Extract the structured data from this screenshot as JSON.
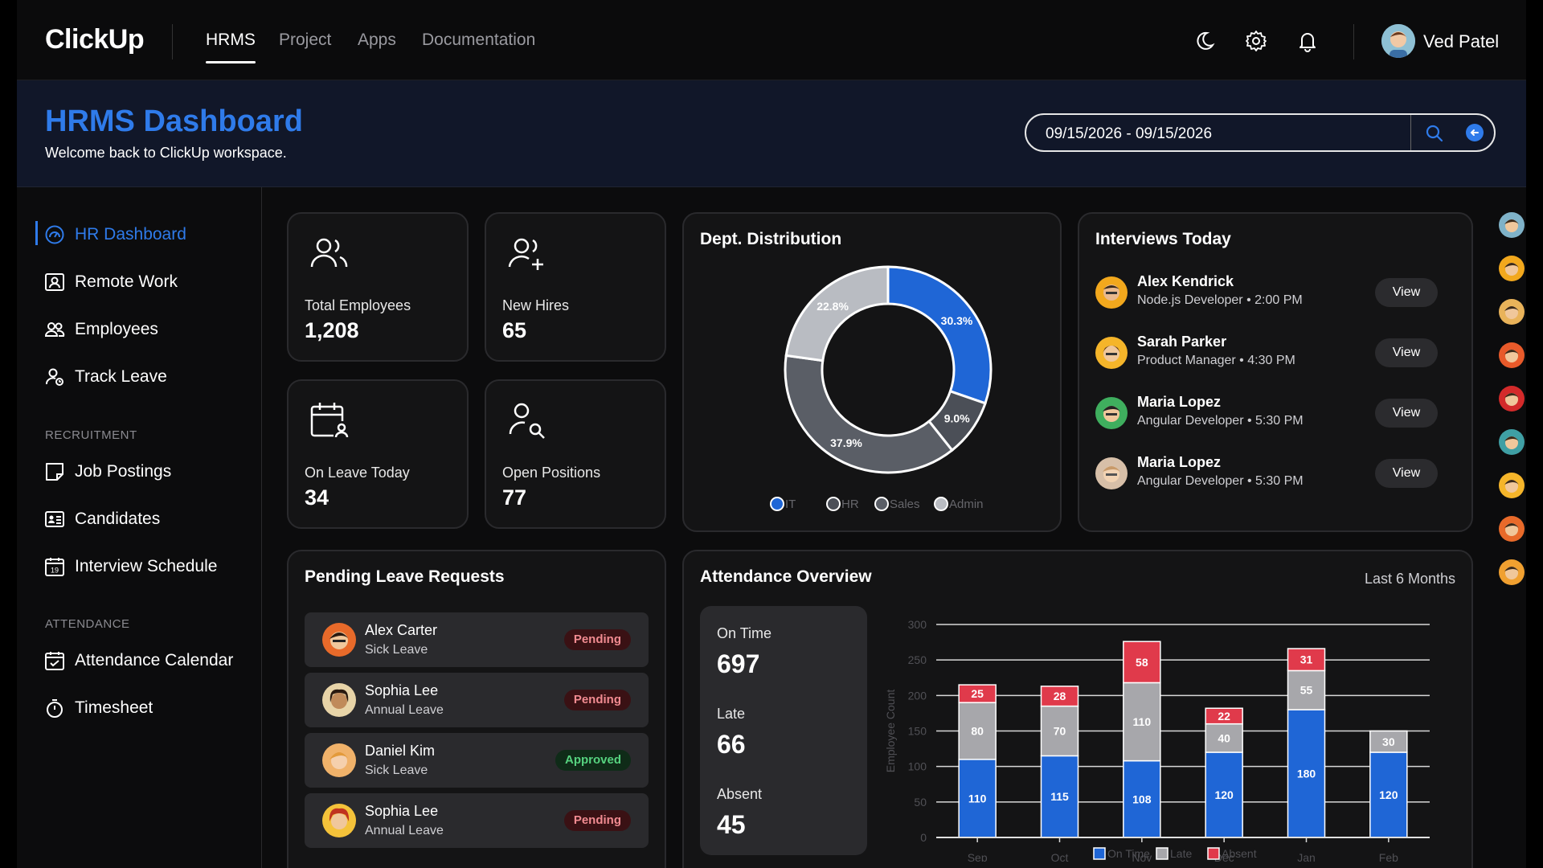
{
  "app": {
    "logo": "ClickUp"
  },
  "nav": {
    "links": [
      "HRMS",
      "Project",
      "Apps",
      "Documentation"
    ],
    "active": "HRMS",
    "icons": [
      "moon-icon",
      "gear-icon",
      "bell-icon"
    ],
    "user_name": "Ved Patel"
  },
  "header": {
    "title": "HRMS Dashboard",
    "subtitle": "Welcome back to ClickUp workspace.",
    "date_range": "09/15/2026 - 09/15/2026"
  },
  "sidebar": {
    "items": [
      {
        "label": "HR Dashboard",
        "icon": "dashboard-icon",
        "active": true
      },
      {
        "label": "Remote Work",
        "icon": "remote-work-icon"
      },
      {
        "label": "Employees",
        "icon": "employees-icon"
      },
      {
        "label": "Track Leave",
        "icon": "track-leave-icon"
      }
    ],
    "recruitment_heading": "RECRUITMENT",
    "recruitment": [
      {
        "label": "Job Postings",
        "icon": "job-postings-icon"
      },
      {
        "label": "Candidates",
        "icon": "candidates-icon"
      },
      {
        "label": "Interview Schedule",
        "icon": "calendar-icon",
        "icon_text": "19"
      }
    ],
    "attendance_heading": "ATTENDANCE",
    "attendance": [
      {
        "label": "Attendance Calendar",
        "icon": "calendar-check-icon"
      },
      {
        "label": "Timesheet",
        "icon": "timer-icon"
      }
    ]
  },
  "stats": [
    {
      "label": "Total Employees",
      "value": "1,208",
      "icon": "users-icon"
    },
    {
      "label": "New Hires",
      "value": "65",
      "icon": "user-plus-icon"
    },
    {
      "label": "On Leave Today",
      "value": "34",
      "icon": "calendar-user-icon"
    },
    {
      "label": "Open Positions",
      "value": "77",
      "icon": "user-search-icon"
    }
  ],
  "dept": {
    "title": "Dept. Distribution",
    "legend": [
      "IT",
      "HR",
      "Sales",
      "Admin"
    ]
  },
  "interviews": {
    "title": "Interviews Today",
    "view_label": "View",
    "items": [
      {
        "name": "Alex Kendrick",
        "role": "Node.js Developer • 2:00 PM"
      },
      {
        "name": "Sarah Parker",
        "role": "Product Manager • 4:30 PM"
      },
      {
        "name": "Maria Lopez",
        "role": "Angular Developer • 5:30 PM"
      },
      {
        "name": "Maria Lopez",
        "role": "Angular Developer • 5:30 PM"
      }
    ]
  },
  "leave": {
    "title": "Pending Leave Requests",
    "items": [
      {
        "name": "Alex Carter",
        "type": "Sick Leave",
        "status": "Pending"
      },
      {
        "name": "Sophia Lee",
        "type": "Annual Leave",
        "status": "Pending"
      },
      {
        "name": "Daniel Kim",
        "type": "Sick Leave",
        "status": "Approved"
      },
      {
        "name": "Sophia Lee",
        "type": "Annual Leave",
        "status": "Pending"
      }
    ]
  },
  "attendance": {
    "title": "Attendance Overview",
    "period": "Last 6 Months",
    "summary": [
      {
        "label": "On Time",
        "value": "697"
      },
      {
        "label": "Late",
        "value": "66"
      },
      {
        "label": "Absent",
        "value": "45"
      }
    ]
  },
  "colors": {
    "accent": "#2f7bea",
    "on_time": "#1f66d6",
    "late": "#a7a7ab",
    "absent": "#e03a4b",
    "hr": "#4b4f57",
    "sales": "#5a5e66",
    "admin": "#b9bcc2"
  },
  "chart_data": [
    {
      "type": "pie",
      "title": "Dept. Distribution",
      "labels": [
        "IT",
        "HR",
        "Sales",
        "Admin"
      ],
      "values": [
        30.3,
        9.0,
        37.9,
        22.8
      ],
      "legend": "bottom"
    },
    {
      "type": "bar",
      "stacked": true,
      "title": "Attendance Overview",
      "categories": [
        "Sep",
        "Oct",
        "Nov",
        "Dec",
        "Jan",
        "Feb"
      ],
      "series": [
        {
          "name": "On Time",
          "values": [
            110,
            115,
            108,
            120,
            180,
            120
          ]
        },
        {
          "name": "Late",
          "values": [
            80,
            70,
            110,
            40,
            55,
            30
          ]
        },
        {
          "name": "Absent",
          "values": [
            25,
            28,
            58,
            22,
            31,
            0
          ]
        }
      ],
      "ylabel": "Employee Count",
      "yticks": [
        0,
        50,
        100,
        150,
        200,
        250,
        300
      ],
      "ylim": [
        0,
        300
      ],
      "grid": true,
      "legend": "bottom"
    }
  ]
}
